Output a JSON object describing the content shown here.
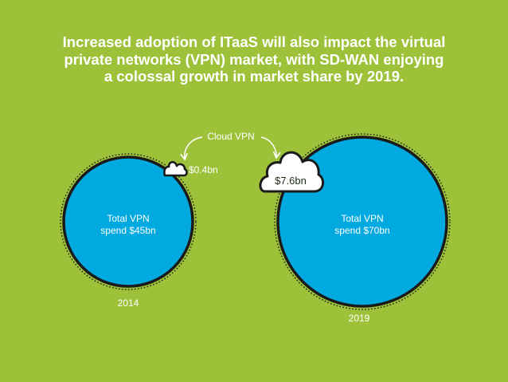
{
  "headline": [
    "Increased adoption of ITaaS will also impact the virtual",
    "private networks (VPN) market, with SD-WAN enjoying",
    "a colossal growth in market share by 2019."
  ],
  "cloud_vpn_label": "Cloud VPN",
  "circles": [
    {
      "year": "2014",
      "total_line1": "Total VPN",
      "total_line2": "spend $45bn",
      "cloud_value": "$0.4bn"
    },
    {
      "year": "2019",
      "total_line1": "Total VPN",
      "total_line2": "spend $70bn",
      "cloud_value": "$7.6bn"
    }
  ],
  "colors": {
    "background": "#9dc23a",
    "circle_fill": "#00a9e0",
    "circle_outline": "#1a1a1a",
    "text": "#ffffff"
  }
}
